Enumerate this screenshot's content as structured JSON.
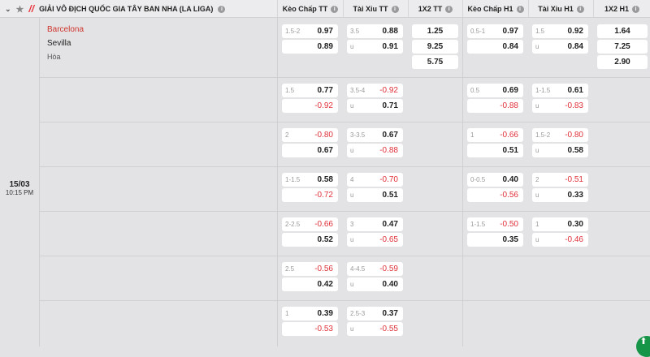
{
  "league": {
    "name": "GIẢI VÔ ĐỊCH QUỐC GIA TÂY BAN NHA (LA LIGA)",
    "icons": [
      "chevron-down-icon",
      "star-icon",
      "laliga-logo",
      "info-icon"
    ]
  },
  "columns": [
    "Kèo Chấp TT",
    "Tài Xỉu TT",
    "1X2 TT",
    "Kèo Chấp H1",
    "Tài Xỉu H1",
    "1X2 H1"
  ],
  "match": {
    "home": "Barcelona",
    "away": "Sevilla",
    "draw": "Hòa",
    "date": "15/03",
    "time": "10:15 PM"
  },
  "x12": {
    "tt": [
      "1.25",
      "9.25",
      "5.75"
    ],
    "h1": [
      "1.64",
      "7.25",
      "2.90"
    ]
  },
  "rows": [
    {
      "hc": [
        "1.5-2",
        "0.97",
        "0.89"
      ],
      "ou": [
        "3.5",
        "0.88",
        "u",
        "0.91"
      ],
      "hc1": [
        "0.5-1",
        "0.97",
        "0.84"
      ],
      "ou1": [
        "1.5",
        "0.92",
        "u",
        "0.84"
      ]
    },
    {
      "hc": [
        "1.5",
        "0.77",
        "-0.92"
      ],
      "ou": [
        "3.5-4",
        "-0.92",
        "u",
        "0.71"
      ],
      "hc1": [
        "0.5",
        "0.69",
        "-0.88"
      ],
      "ou1": [
        "1-1.5",
        "0.61",
        "u",
        "-0.83"
      ]
    },
    {
      "hc": [
        "2",
        "-0.80",
        "0.67"
      ],
      "ou": [
        "3-3.5",
        "0.67",
        "u",
        "-0.88"
      ],
      "hc1": [
        "1",
        "-0.66",
        "0.51"
      ],
      "ou1": [
        "1.5-2",
        "-0.80",
        "u",
        "0.58"
      ]
    },
    {
      "hc": [
        "1-1.5",
        "0.58",
        "-0.72"
      ],
      "ou": [
        "4",
        "-0.70",
        "u",
        "0.51"
      ],
      "hc1": [
        "0-0.5",
        "0.40",
        "-0.56"
      ],
      "ou1": [
        "2",
        "-0.51",
        "u",
        "0.33"
      ]
    },
    {
      "hc": [
        "2-2.5",
        "-0.66",
        "0.52"
      ],
      "ou": [
        "3",
        "0.47",
        "u",
        "-0.65"
      ],
      "hc1": [
        "1-1.5",
        "-0.50",
        "0.35"
      ],
      "ou1": [
        "1",
        "0.30",
        "u",
        "-0.46"
      ]
    },
    {
      "hc": [
        "2.5",
        "-0.56",
        "0.42"
      ],
      "ou": [
        "4-4.5",
        "-0.59",
        "u",
        "0.40"
      ]
    },
    {
      "hc": [
        "1",
        "0.39",
        "-0.53"
      ],
      "ou": [
        "2.5-3",
        "0.37",
        "u",
        "-0.55"
      ]
    }
  ],
  "colors": {
    "negative": "#e0303a",
    "home": "#d0342c",
    "scroll_top": "#169448"
  }
}
